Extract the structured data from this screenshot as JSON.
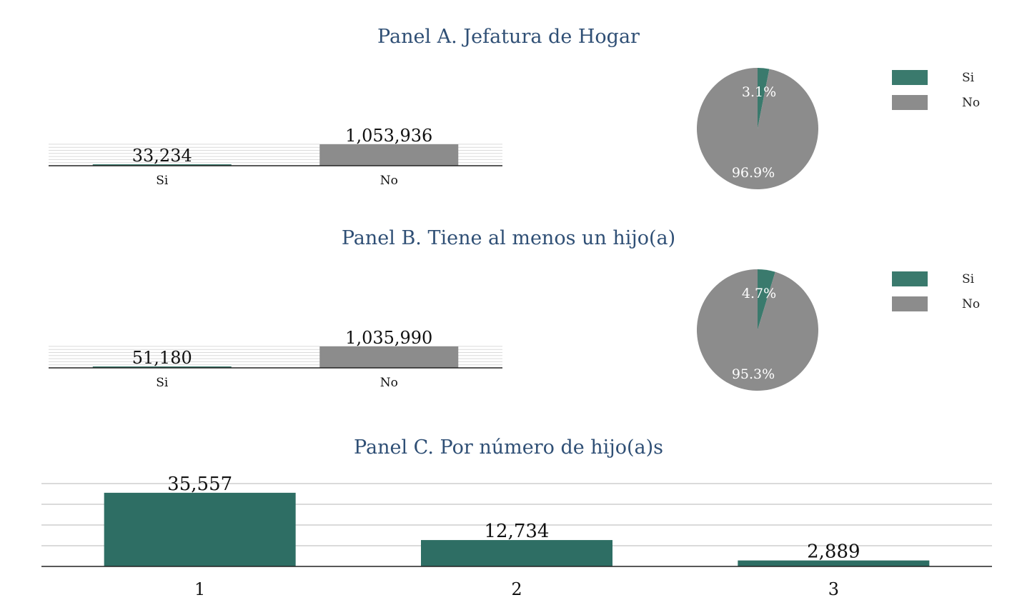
{
  "colors": {
    "si": "#3a7a6d",
    "no": "#8c8c8c",
    "teal_bar": "#2e6e64",
    "title": "#2f4f75",
    "grid": "#dadada"
  },
  "chart_data": [
    {
      "id": "panel_a_bar",
      "type": "bar",
      "title": "Panel A. Jefatura de Hogar",
      "categories": [
        "Si",
        "No"
      ],
      "values": [
        33234,
        1053936
      ],
      "value_labels": [
        "33,234",
        "1,053,936"
      ],
      "ylim": [
        0,
        1053936
      ],
      "grid": true
    },
    {
      "id": "panel_a_pie",
      "type": "pie",
      "labels": [
        "Si",
        "No"
      ],
      "values": [
        3.1,
        96.9
      ],
      "value_labels": [
        "3.1%",
        "96.9%"
      ],
      "legend": [
        "Si",
        "No"
      ]
    },
    {
      "id": "panel_b_bar",
      "type": "bar",
      "title": "Panel B. Tiene al menos un hijo(a)",
      "categories": [
        "Si",
        "No"
      ],
      "values": [
        51180,
        1035990
      ],
      "value_labels": [
        "51,180",
        "1,035,990"
      ],
      "ylim": [
        0,
        1035990
      ],
      "grid": true
    },
    {
      "id": "panel_b_pie",
      "type": "pie",
      "labels": [
        "Si",
        "No"
      ],
      "values": [
        4.7,
        95.3
      ],
      "value_labels": [
        "4.7%",
        "95.3%"
      ],
      "legend": [
        "Si",
        "No"
      ]
    },
    {
      "id": "panel_c_bar",
      "type": "bar",
      "title": "Panel C. Por número de hijo(a)s",
      "categories": [
        "1",
        "2",
        "3"
      ],
      "values": [
        35557,
        12734,
        2889
      ],
      "value_labels": [
        "35,557",
        "12,734",
        "2,889"
      ],
      "ylim": [
        0,
        40000
      ],
      "grid": true
    }
  ]
}
